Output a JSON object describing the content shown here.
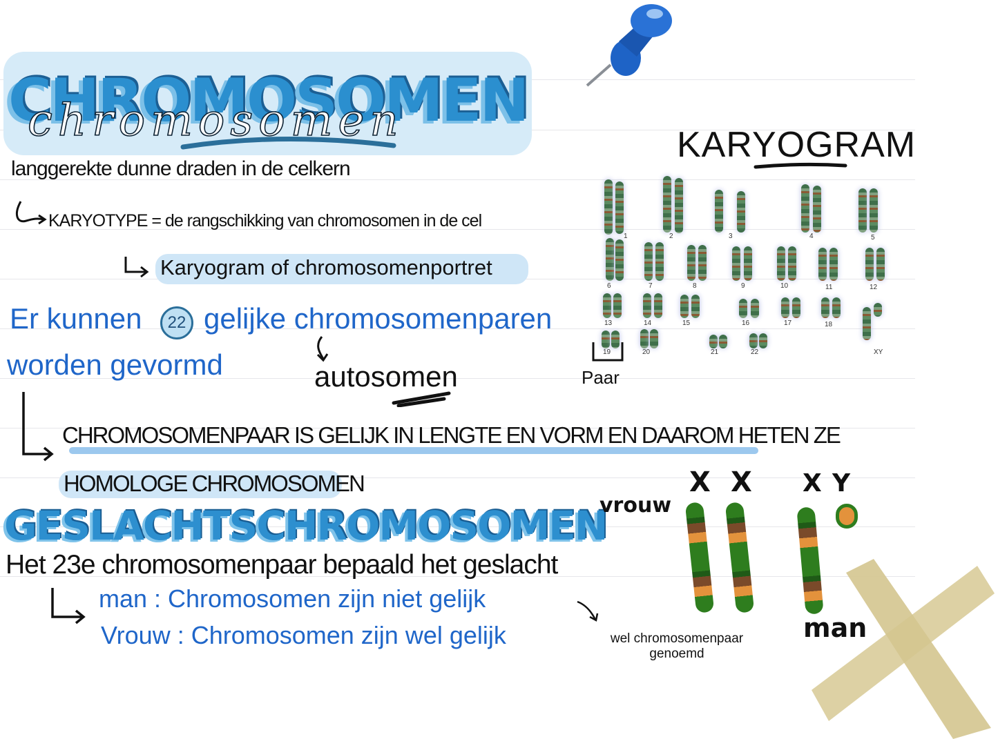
{
  "title": {
    "block": "CHROMOSOMEN",
    "script": "chromosomen"
  },
  "definition": "langgerekte dunne draden in de celkern",
  "karyotype_line": "KARYOTYPE = de rangschikking van chromosomen in de cel",
  "karyogram_line": "Karyogram of chromosomenportret",
  "pairs_line1": "Er kunnen",
  "pairs_number": "22",
  "pairs_line1b": "gelijke chromosomenparen",
  "pairs_line2": "worden gevormd",
  "autosomen": "autosomen",
  "homologous_line1": "CHROMOSOMENPAAR IS GELIJK IN LENGTE EN VORM EN DAAROM HETEN ZE",
  "homologous_line2": "HOMOLOGE CHROMOSOMEN",
  "sex_heading": "GESLACHTSCHROMOSOMEN",
  "sex_line": "Het 23e chromosomenpaar bepaald het geslacht",
  "man_line": "man : Chromosomen zijn niet gelijk",
  "vrouw_line": "Vrouw : Chromosomen zijn wel gelijk",
  "wel_note": "wel chromosomenpaar genoemd",
  "karyogram": {
    "title": "KARYOGRAM",
    "numbers": [
      "1",
      "2",
      "3",
      "4",
      "5",
      "6",
      "7",
      "8",
      "9",
      "10",
      "11",
      "12",
      "13",
      "14",
      "15",
      "16",
      "17",
      "18",
      "19",
      "20",
      "21",
      "22",
      "XY"
    ],
    "paar_label": "Paar"
  },
  "sex_diagram": {
    "vrouw_label": "vrouw",
    "x1": "X",
    "x2": "X",
    "x3": "X",
    "y": "Y",
    "man_label": "man"
  },
  "colors": {
    "accent": "#2b8fcf",
    "highlight": "#cfe6f7",
    "pen_blue": "#1f66c9",
    "pin": "#1a5fc2",
    "tape": "#d9cc9a"
  }
}
